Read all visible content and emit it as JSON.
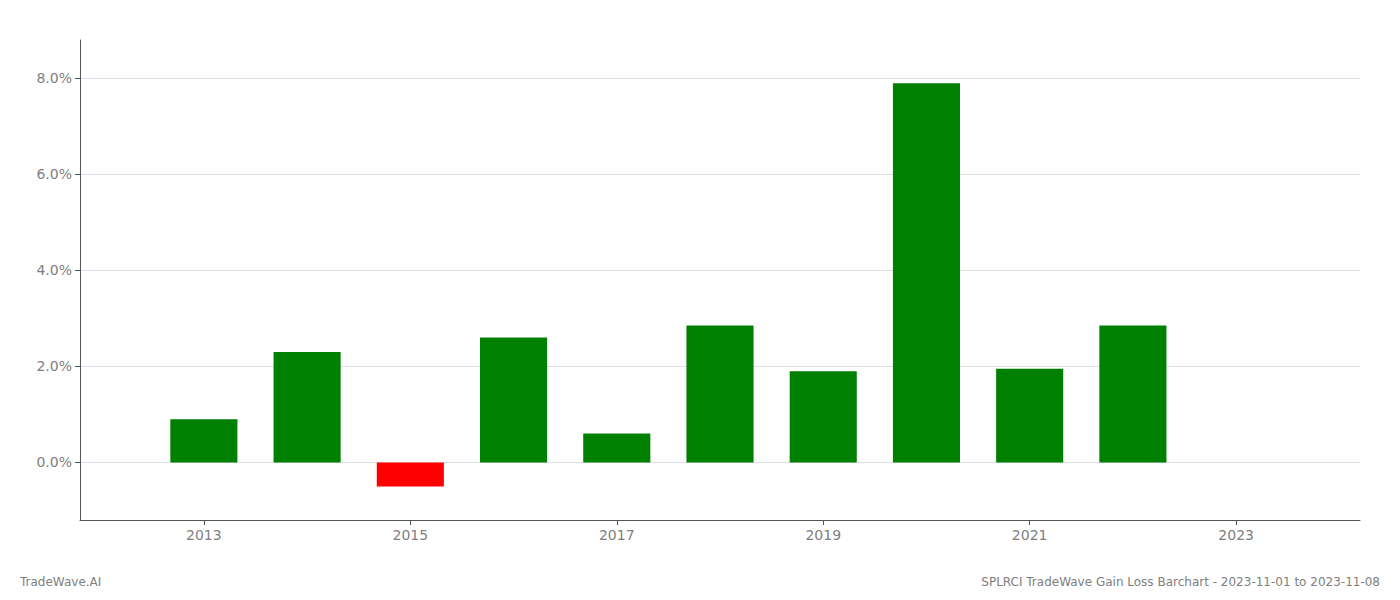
{
  "chart_data": {
    "type": "bar",
    "x": [
      2013,
      2014,
      2015,
      2016,
      2017,
      2018,
      2019,
      2020,
      2021,
      2022
    ],
    "values": [
      0.009,
      0.023,
      -0.005,
      0.026,
      0.006,
      0.0285,
      0.019,
      0.079,
      0.0195,
      0.0285
    ],
    "colors": [
      "#008000",
      "#008000",
      "#ff0000",
      "#008000",
      "#008000",
      "#008000",
      "#008000",
      "#008000",
      "#008000",
      "#008000"
    ],
    "xlim": [
      2011.8,
      2024.2
    ],
    "xticks": [
      2013,
      2015,
      2017,
      2019,
      2021,
      2023
    ],
    "ylim": [
      -0.012,
      0.088
    ],
    "yticks": [
      {
        "value": 0.0,
        "label": "0.0%"
      },
      {
        "value": 0.02,
        "label": "2.0%"
      },
      {
        "value": 0.04,
        "label": "4.0%"
      },
      {
        "value": 0.06,
        "label": "6.0%"
      },
      {
        "value": 0.08,
        "label": "8.0%"
      }
    ],
    "grid": true,
    "annotations": [
      "TradeWave.AI",
      "SPLRCI TradeWave Gain Loss Barchart - 2023-11-01 to 2023-11-08"
    ]
  }
}
